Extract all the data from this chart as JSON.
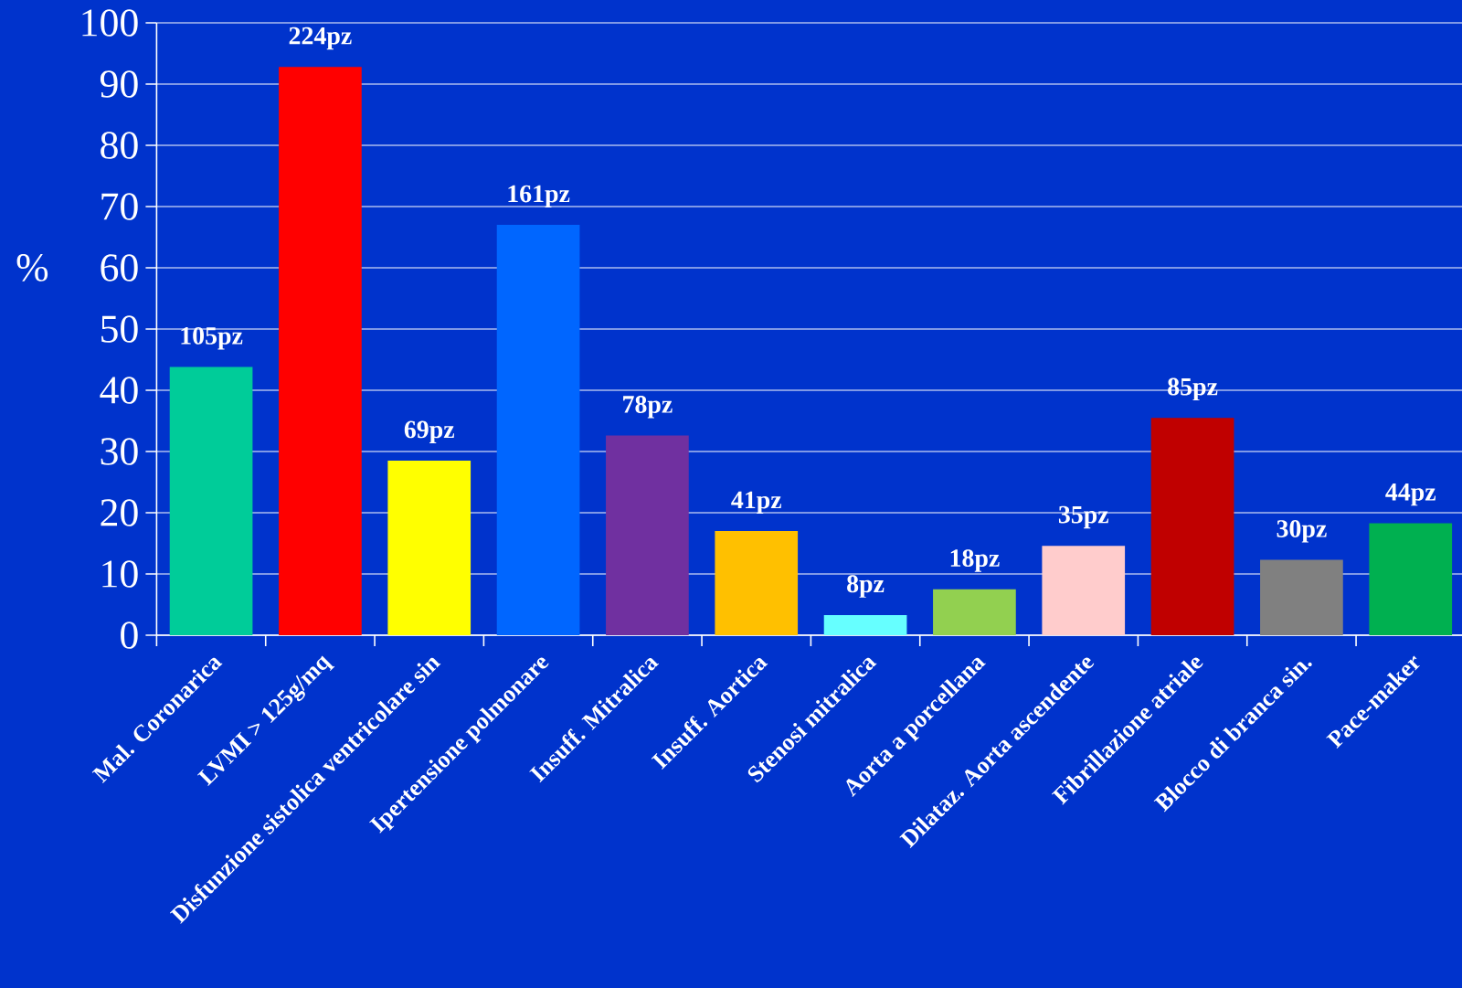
{
  "chart_data": {
    "type": "bar",
    "ylabel": "%",
    "categories": [
      "Mal. Coronarica",
      "LVMI > 125g/mq",
      "Disfunzione sistolica ventricolare sin",
      "Ipertensione polmonare",
      "Insuff. Mitralica",
      "Insuff. Aortica",
      "Stenosi mitralica",
      "Aorta a porcellana",
      "Dilataz. Aorta ascendente",
      "Fibrillazione atriale",
      "Blocco di branca sin.",
      "Pace-maker"
    ],
    "values": [
      43.8,
      92.8,
      28.5,
      67,
      32.6,
      17,
      3.3,
      7.5,
      14.6,
      35.5,
      12.3,
      18.3
    ],
    "colors": [
      "#00cc99",
      "#ff0000",
      "#ffff00",
      "#0066ff",
      "#7030a0",
      "#ffc000",
      "#66ffff",
      "#92d050",
      "#ffcccc",
      "#c00000",
      "#808080",
      "#00b050"
    ],
    "annotations": [
      {
        "text": "105pz",
        "x": "Mal. Coronarica",
        "y": 43.8
      },
      {
        "text": "224pz",
        "x": "LVMI > 125g/mq",
        "y": 92.8
      },
      {
        "text": "69pz",
        "x": "Disfunzione sistolica ventricolare sin",
        "y": 28.5
      },
      {
        "text": "161pz",
        "x": "Ipertensione polmonare",
        "y": 67
      },
      {
        "text": "78pz",
        "x": "Insuff. Mitralica",
        "y": 32.6
      },
      {
        "text": "41pz",
        "x": "Insuff. Aortica",
        "y": 17
      },
      {
        "text": "8pz",
        "x": "Stenosi mitralica",
        "y": 3.3
      },
      {
        "text": "18pz",
        "x": "Aorta a porcellana",
        "y": 7.5
      },
      {
        "text": "35pz",
        "x": "Dilataz. Aorta ascendente",
        "y": 14.6
      },
      {
        "text": "85pz",
        "x": "Fibrillazione atriale",
        "y": 35.5
      },
      {
        "text": "30pz",
        "x": "Blocco di branca sin.",
        "y": 12.3
      },
      {
        "text": "44pz",
        "x": "Pace-maker",
        "y": 18.3
      }
    ],
    "ylim": [
      0,
      100
    ],
    "yticks": [
      0,
      10,
      20,
      30,
      40,
      50,
      60,
      70,
      80,
      90,
      100
    ],
    "grid": "y"
  }
}
